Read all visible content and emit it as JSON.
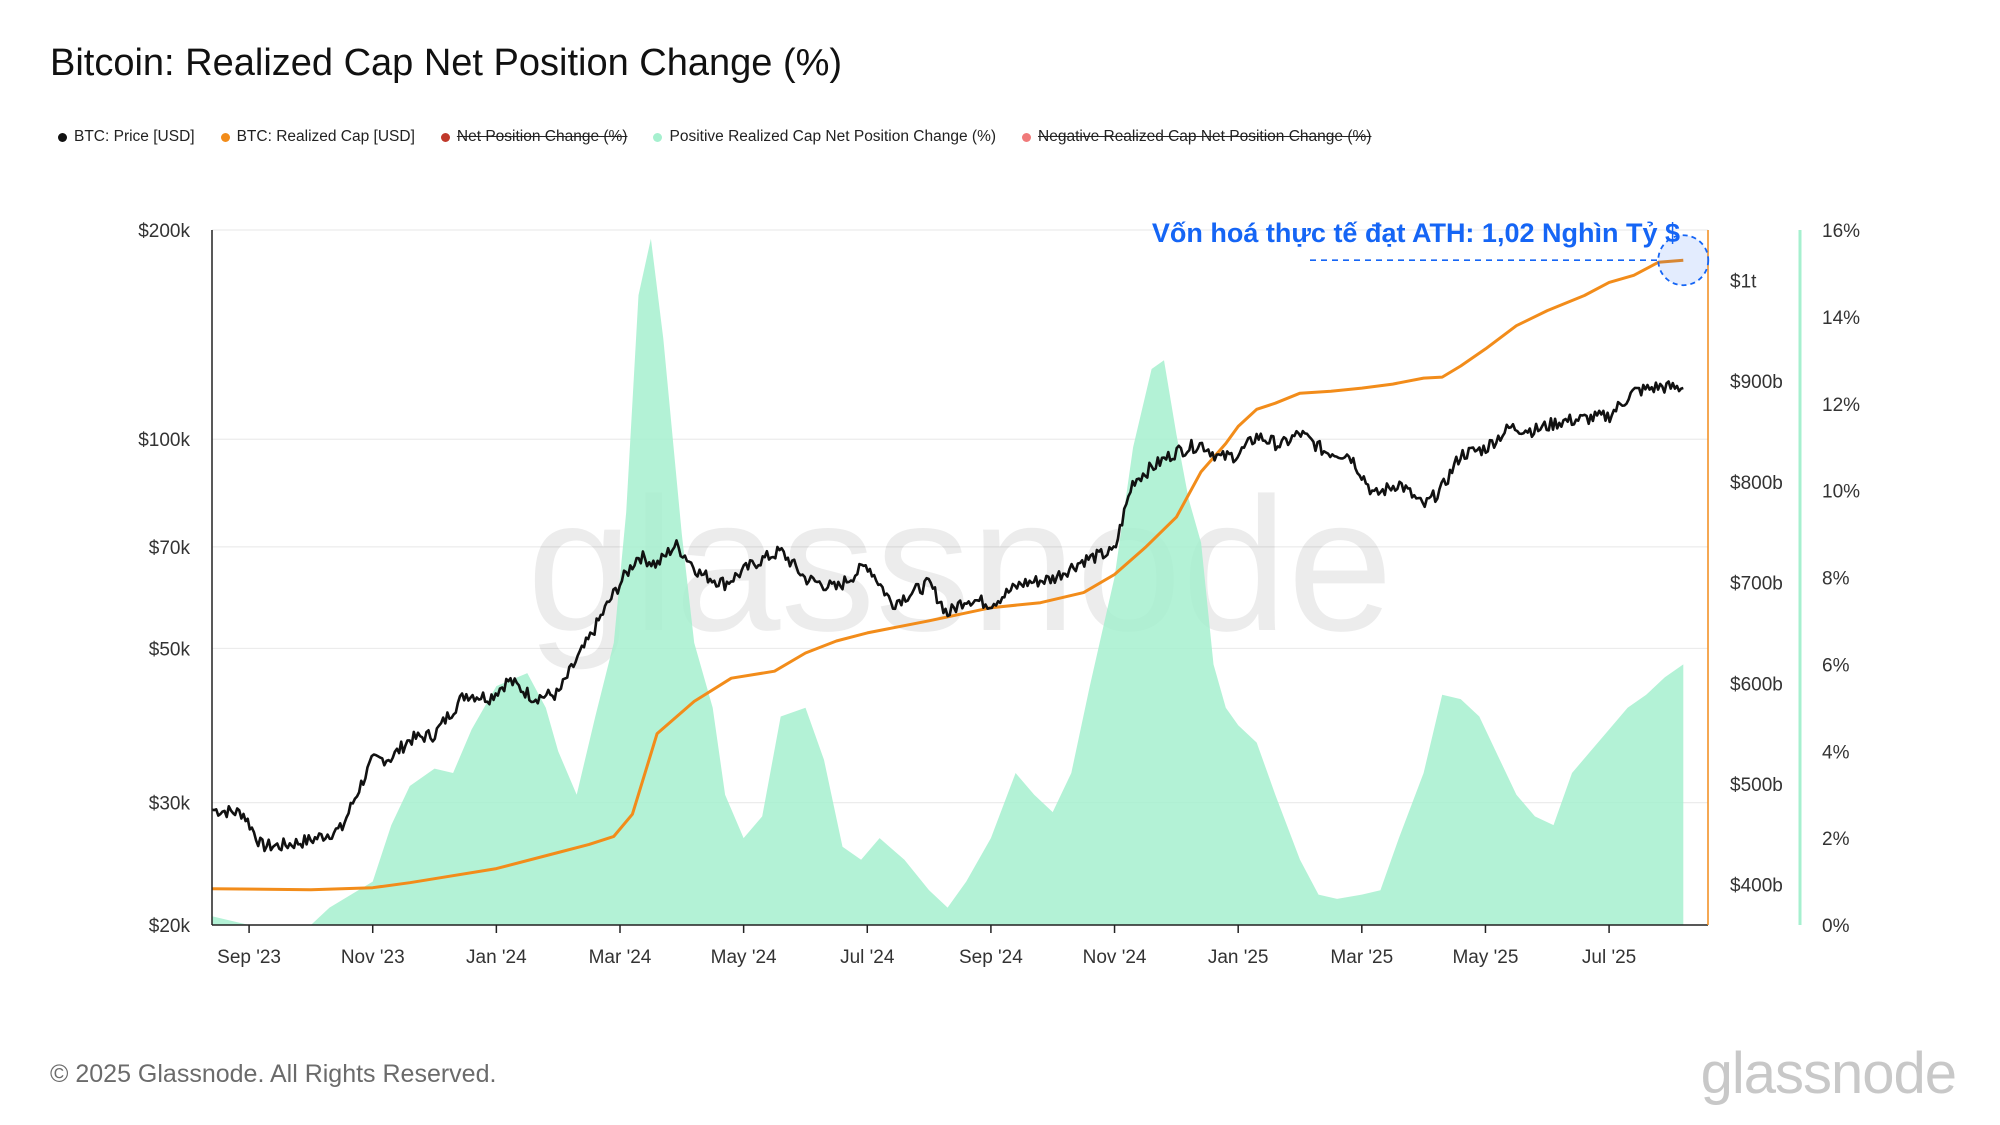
{
  "title": "Bitcoin: Realized Cap Net Position Change (%)",
  "legend": [
    {
      "label": "BTC: Price [USD]",
      "color": "#111111",
      "hidden": false
    },
    {
      "label": "BTC: Realized Cap [USD]",
      "color": "#f28c1a",
      "hidden": false
    },
    {
      "label": "Net Position Change (%)",
      "color": "#c0392b",
      "hidden": true
    },
    {
      "label": "Positive Realized Cap Net Position Change (%)",
      "color": "#a6f0cf",
      "hidden": false
    },
    {
      "label": "Negative Realized Cap Net Position Change (%)",
      "color": "#f07a7a",
      "hidden": true
    }
  ],
  "footer": "© 2025 Glassnode. All Rights Reserved.",
  "brand": "glassnode",
  "watermark": "glassnode",
  "chart_data": {
    "type": "line",
    "x_tick_labels": [
      "Sep '23",
      "Nov '23",
      "Jan '24",
      "Mar '24",
      "May '24",
      "Jul '24",
      "Sep '24",
      "Nov '24",
      "Jan '25",
      "Mar '25",
      "May '25",
      "Jul '25"
    ],
    "x_tick_months": [
      1,
      3,
      5,
      7,
      9,
      11,
      13,
      15,
      17,
      19,
      21,
      23
    ],
    "xlim_months": [
      0.4,
      24.6
    ],
    "y_left": {
      "scale": "log",
      "ticks": [
        "$20k",
        "$30k",
        "$50k",
        "$70k",
        "$100k",
        "$200k"
      ],
      "tick_values": [
        20000,
        30000,
        50000,
        70000,
        100000,
        200000
      ],
      "range": [
        20000,
        200000
      ]
    },
    "y_right": {
      "ticks": [
        "$400b",
        "$500b",
        "$600b",
        "$700b",
        "$800b",
        "$900b",
        "$1t"
      ],
      "tick_values": [
        400,
        500,
        600,
        700,
        800,
        900,
        1000
      ],
      "range": [
        360,
        1050
      ],
      "unit": "billion USD"
    },
    "y_right2": {
      "ticks": [
        "0%",
        "2%",
        "4%",
        "6%",
        "8%",
        "10%",
        "12%",
        "14%",
        "16%"
      ],
      "tick_values": [
        0,
        2,
        4,
        6,
        8,
        10,
        12,
        14,
        16
      ],
      "range": [
        0,
        16
      ]
    },
    "annotation": {
      "text": "Vốn hoá thực tế đạt ATH: 1,02 Nghìn Tỷ $",
      "color": "#1565f5"
    },
    "series": [
      {
        "name": "BTC: Price [USD]",
        "color": "#111111",
        "axis": "left",
        "x": [
          0.4,
          0.9,
          1.2,
          1.5,
          2.0,
          2.5,
          3.0,
          3.3,
          3.6,
          4.0,
          4.5,
          4.9,
          5.2,
          5.6,
          6.0,
          6.5,
          7.0,
          7.3,
          7.6,
          7.9,
          8.3,
          8.7,
          9.2,
          9.6,
          10.0,
          10.5,
          11.0,
          11.4,
          12.0,
          12.3,
          12.6,
          13.0,
          13.5,
          14.0,
          14.5,
          15.0,
          15.3,
          15.6,
          16.0,
          16.4,
          16.7,
          17.0,
          17.3,
          17.7,
          18.0,
          18.4,
          18.8,
          19.2,
          19.6,
          20.0,
          20.3,
          20.6,
          21.0,
          21.4,
          21.8,
          22.2,
          22.6,
          23.0,
          23.4,
          23.8,
          24.2
        ],
        "values": [
          29300,
          29000,
          26000,
          26000,
          26500,
          27500,
          34500,
          34800,
          37000,
          37600,
          43000,
          42500,
          45000,
          42500,
          43000,
          51500,
          62000,
          68000,
          66000,
          70500,
          64000,
          62000,
          66500,
          69000,
          63000,
          61000,
          66000,
          58000,
          62000,
          56000,
          59000,
          58000,
          62000,
          63000,
          67000,
          69000,
          87000,
          91000,
          96000,
          98500,
          94000,
          95000,
          101000,
          98000,
          102000,
          96000,
          95000,
          83000,
          86500,
          80000,
          85000,
          95000,
          97000,
          104000,
          103000,
          106000,
          107000,
          108000,
          117000,
          119000,
          118500
        ]
      },
      {
        "name": "BTC: Realized Cap [USD]",
        "color": "#f28c1a",
        "axis": "right",
        "unit": "billion USD",
        "x": [
          0.4,
          2.0,
          3.0,
          3.6,
          4.0,
          5.0,
          6.0,
          6.5,
          6.9,
          7.2,
          7.6,
          8.2,
          8.8,
          9.5,
          10.0,
          10.5,
          11.0,
          12.0,
          13.0,
          13.8,
          14.5,
          15.0,
          15.5,
          16.0,
          16.4,
          16.8,
          17.0,
          17.3,
          17.6,
          18.0,
          18.5,
          19.0,
          19.5,
          20.0,
          20.3,
          20.6,
          21.0,
          21.5,
          22.0,
          22.6,
          23.0,
          23.4,
          23.8,
          24.2
        ],
        "values": [
          396,
          395,
          397,
          402,
          406,
          416,
          432,
          440,
          448,
          470,
          550,
          582,
          605,
          612,
          630,
          642,
          650,
          662,
          675,
          680,
          690,
          708,
          735,
          765,
          810,
          838,
          855,
          872,
          878,
          888,
          890,
          893,
          897,
          903,
          904,
          915,
          932,
          955,
          970,
          985,
          998,
          1005,
          1018,
          1020
        ]
      },
      {
        "name": "Positive Realized Cap Net Position Change (%)",
        "color": "#a6f0cf",
        "axis": "right2",
        "unit": "%",
        "x": [
          0.4,
          1.0,
          2.0,
          2.3,
          3.0,
          3.3,
          3.6,
          4.0,
          4.3,
          4.6,
          5.0,
          5.5,
          5.8,
          6.0,
          6.3,
          6.6,
          6.9,
          7.1,
          7.3,
          7.5,
          7.7,
          8.0,
          8.2,
          8.5,
          8.7,
          9.0,
          9.3,
          9.6,
          10.0,
          10.3,
          10.6,
          10.9,
          11.2,
          11.6,
          12.0,
          12.3,
          12.6,
          13.0,
          13.4,
          13.7,
          14.0,
          14.3,
          14.6,
          15.0,
          15.3,
          15.6,
          15.8,
          16.0,
          16.2,
          16.4,
          16.6,
          16.8,
          17.0,
          17.3,
          17.6,
          18.0,
          18.3,
          18.6,
          19.0,
          19.3,
          19.6,
          20.0,
          20.3,
          20.6,
          20.9,
          21.2,
          21.5,
          21.8,
          22.1,
          22.4,
          22.7,
          23.0,
          23.3,
          23.6,
          23.9,
          24.2
        ],
        "values": [
          0.2,
          0,
          0,
          0.4,
          1.0,
          2.3,
          3.2,
          3.6,
          3.5,
          4.5,
          5.5,
          5.8,
          5.0,
          4.0,
          3.0,
          4.8,
          6.5,
          9.5,
          14.5,
          15.8,
          13.5,
          9.0,
          6.5,
          5.0,
          3.0,
          2.0,
          2.5,
          4.8,
          5.0,
          3.8,
          1.8,
          1.5,
          2.0,
          1.5,
          0.8,
          0.4,
          1.0,
          2.0,
          3.5,
          3.0,
          2.6,
          3.5,
          5.5,
          8.0,
          11.0,
          12.8,
          13.0,
          11.3,
          9.8,
          8.8,
          6.0,
          5.0,
          4.6,
          4.2,
          3.0,
          1.5,
          0.7,
          0.6,
          0.7,
          0.8,
          2.0,
          3.5,
          5.3,
          5.2,
          4.8,
          3.9,
          3.0,
          2.5,
          2.3,
          3.5,
          4.0,
          4.5,
          5.0,
          5.3,
          5.7,
          6.0
        ]
      }
    ]
  }
}
